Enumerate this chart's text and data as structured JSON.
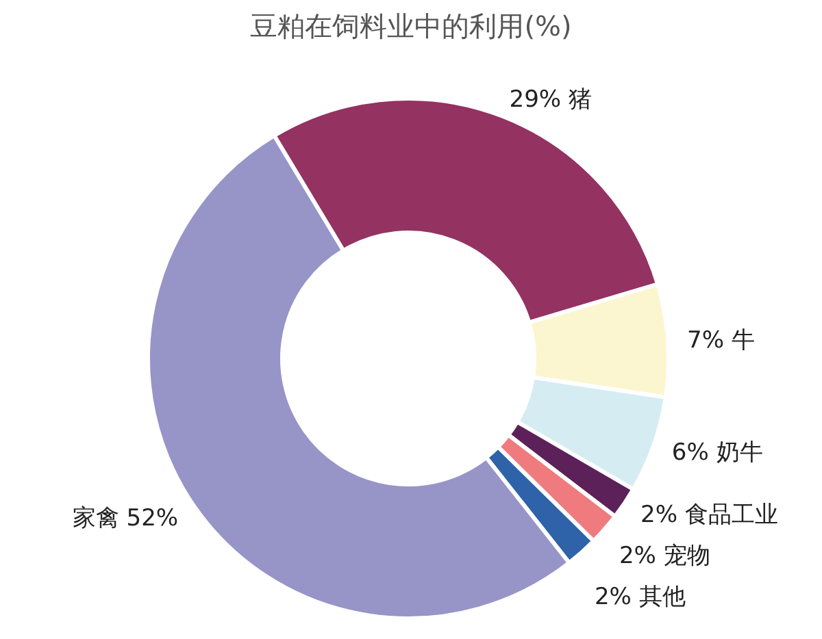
{
  "chart_data": {
    "type": "donut",
    "title": "豆粕在饲料业中的利用(%)",
    "categories": [
      "猪",
      "牛",
      "奶牛",
      "食品工业",
      "宠物",
      "其他",
      "家禽"
    ],
    "values": [
      29,
      7,
      6,
      2,
      2,
      2,
      52
    ],
    "value_labels": [
      "29%",
      "7%",
      "6%",
      "2%",
      "2%",
      "2%",
      "52%"
    ],
    "colors": [
      "#943261",
      "#fbf6d0",
      "#d5ecf2",
      "#5c2158",
      "#ef7b7e",
      "#2e62a9",
      "#9794c8"
    ]
  }
}
